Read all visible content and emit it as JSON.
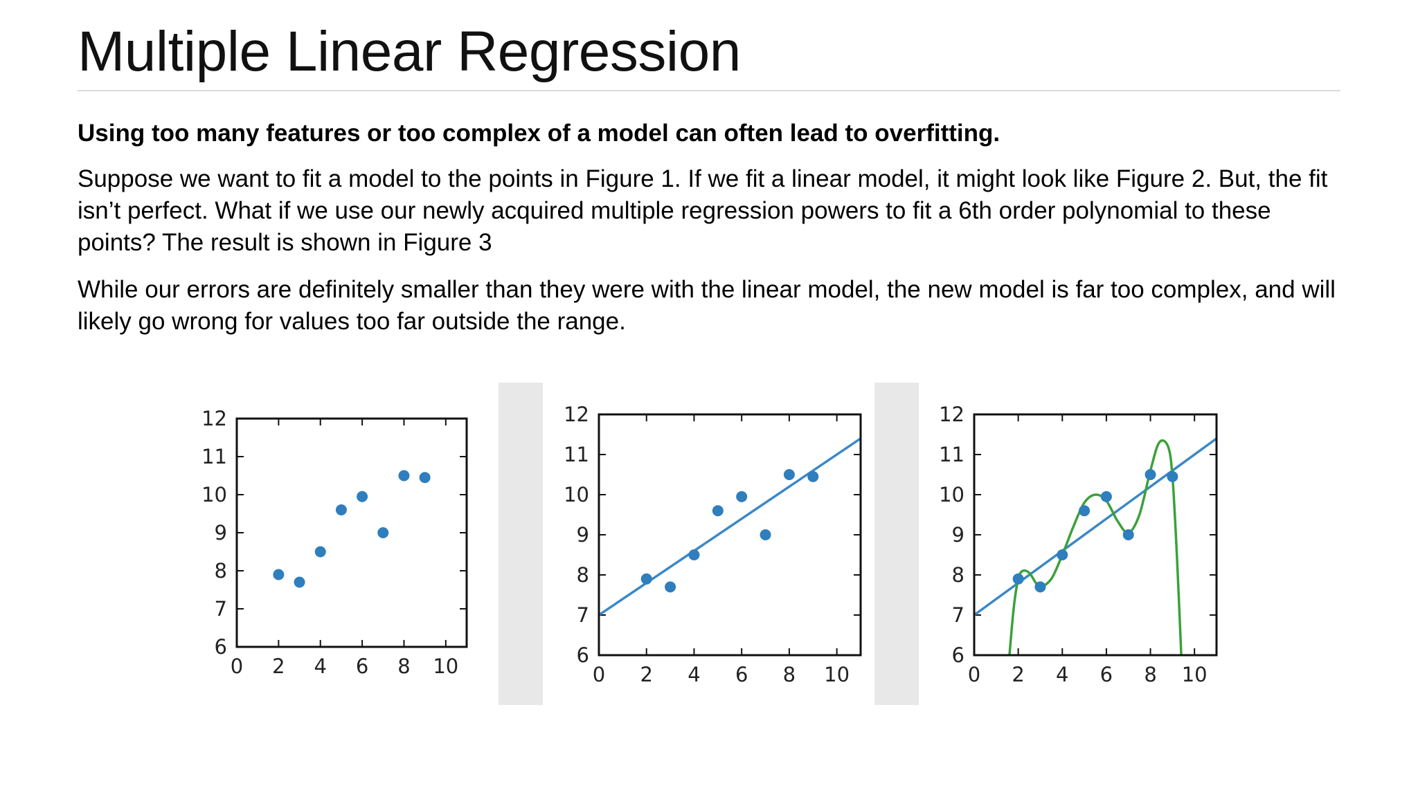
{
  "slide": {
    "title": "Multiple Linear Regression",
    "lead": "Using too many features or too complex of a model can often lead to overfitting.",
    "paragraphs": [
      "Suppose we want to fit a model to the points in Figure 1. If we fit a linear model, it might look like Figure 2. But, the fit isn’t perfect. What if we use our newly acquired multiple regression powers to fit a 6th order polynomial to these points? The result is shown in Figure 3",
      "While our errors are definitely smaller than they were with the linear model, the new model is far too complex, and will likely go wrong for values too far outside the range."
    ]
  },
  "colors": {
    "points": "#2f7ebd",
    "linear_fit": "#3a88c6",
    "poly_fit": "#3aa13a",
    "separator": "#e8e8e8"
  },
  "chart_data": [
    {
      "type": "scatter",
      "title": "",
      "xlabel": "",
      "ylabel": "",
      "xlim": [
        0,
        11
      ],
      "ylim": [
        6,
        12
      ],
      "xticks": [
        0,
        2,
        4,
        6,
        8,
        10
      ],
      "yticks": [
        6,
        7,
        8,
        9,
        10,
        11,
        12
      ],
      "x": [
        2,
        3,
        4,
        5,
        6,
        7,
        8,
        9
      ],
      "y": [
        7.9,
        7.7,
        8.5,
        9.6,
        9.95,
        9.0,
        10.5,
        10.45
      ],
      "grid": false
    },
    {
      "type": "scatter",
      "title": "",
      "xlabel": "",
      "ylabel": "",
      "xlim": [
        0,
        11
      ],
      "ylim": [
        6,
        12
      ],
      "xticks": [
        0,
        2,
        4,
        6,
        8,
        10
      ],
      "yticks": [
        6,
        7,
        8,
        9,
        10,
        11,
        12
      ],
      "x": [
        2,
        3,
        4,
        5,
        6,
        7,
        8,
        9
      ],
      "y": [
        7.9,
        7.7,
        8.5,
        9.6,
        9.95,
        9.0,
        10.5,
        10.45
      ],
      "fit_linear": {
        "intercept": 7.0,
        "slope": 0.4
      },
      "grid": false
    },
    {
      "type": "scatter",
      "title": "",
      "xlabel": "",
      "ylabel": "",
      "xlim": [
        0,
        11
      ],
      "ylim": [
        6,
        12
      ],
      "xticks": [
        0,
        2,
        4,
        6,
        8,
        10
      ],
      "yticks": [
        6,
        7,
        8,
        9,
        10,
        11,
        12
      ],
      "x": [
        2,
        3,
        4,
        5,
        6,
        7,
        8,
        9
      ],
      "y": [
        7.9,
        7.7,
        8.5,
        9.6,
        9.95,
        9.0,
        10.5,
        10.45
      ],
      "fit_linear": {
        "intercept": 7.0,
        "slope": 0.4
      },
      "fit_poly6": {
        "x": [
          1.6,
          1.8,
          2.0,
          2.2,
          2.5,
          2.8,
          3.0,
          3.5,
          4.0,
          4.5,
          5.0,
          5.5,
          6.0,
          6.5,
          7.0,
          7.5,
          8.0,
          8.4,
          8.8,
          9.0,
          9.2,
          9.4
        ],
        "y": [
          6.0,
          7.2,
          7.9,
          8.1,
          8.05,
          7.8,
          7.7,
          7.9,
          8.5,
          9.2,
          9.8,
          10.0,
          9.85,
          9.35,
          9.05,
          9.5,
          10.6,
          11.3,
          11.2,
          10.45,
          8.5,
          6.0
        ]
      },
      "grid": false
    }
  ]
}
